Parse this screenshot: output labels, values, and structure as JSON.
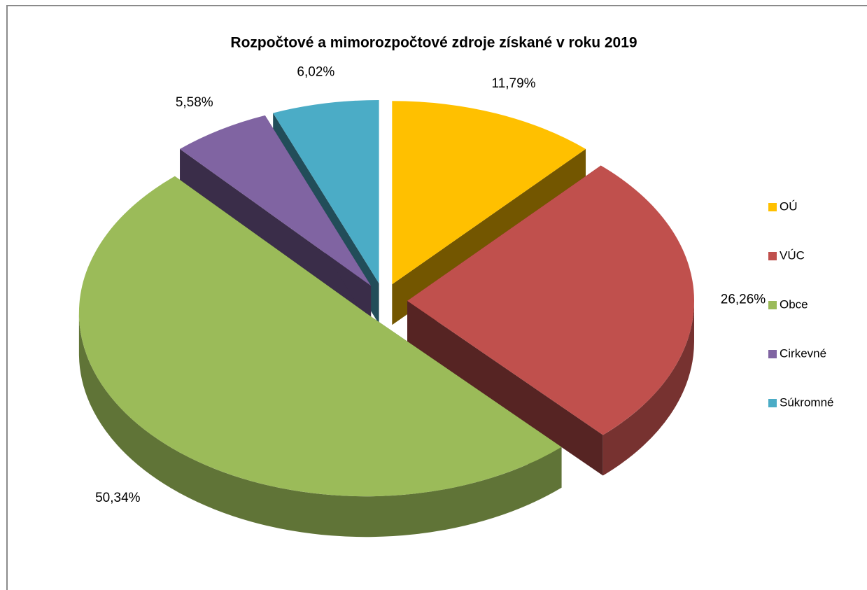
{
  "chart_data": {
    "type": "pie3d",
    "title": "Rozpočtové a mimorozpočtové zdroje získané v roku 2019",
    "categories": [
      "OÚ",
      "VÚC",
      "Obce",
      "Cirkevné",
      "Súkromné"
    ],
    "values": [
      11.79,
      26.26,
      50.34,
      5.58,
      6.02
    ],
    "value_labels": [
      "11,79%",
      "26,26%",
      "50,34%",
      "5,58%",
      "6,02%"
    ],
    "colors": [
      "#ffc000",
      "#c0504d",
      "#9bbb59",
      "#8064a2",
      "#4bacc6"
    ],
    "legend": "right"
  }
}
